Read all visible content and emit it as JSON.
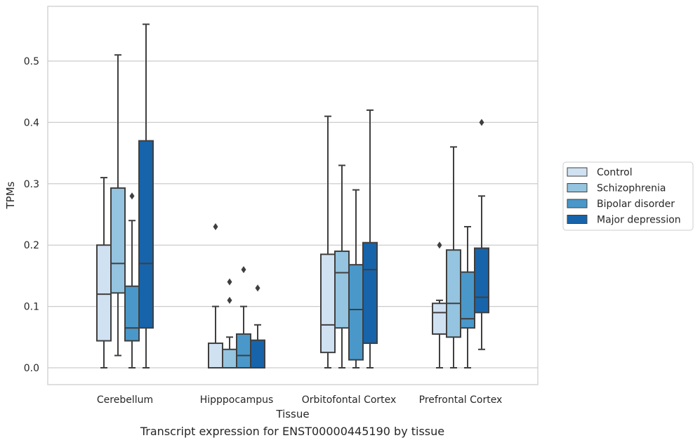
{
  "caption": "Transcript expression for ENST00000445190 by tissue",
  "chart_data": {
    "type": "box",
    "xlabel": "Tissue",
    "ylabel": "TPMs",
    "ylim": [
      -0.027,
      0.588
    ],
    "yticks": [
      0.0,
      0.1,
      0.2,
      0.3,
      0.4,
      0.5
    ],
    "grid": "horizontal",
    "legend_position": "right",
    "categories": [
      "Cerebellum",
      "Hipppocampus",
      "Orbitofontal Cortex",
      "Prefrontal Cortex"
    ],
    "series": [
      {
        "name": "Control",
        "color": "#d0e1f2",
        "boxes": [
          {
            "whislo": 0.0,
            "q1": 0.044,
            "med": 0.12,
            "q3": 0.2,
            "whishi": 0.31,
            "fliers": []
          },
          {
            "whislo": 0.0,
            "q1": 0.0,
            "med": 0.0,
            "q3": 0.04,
            "whishi": 0.1,
            "fliers": [
              0.23
            ]
          },
          {
            "whislo": 0.0,
            "q1": 0.025,
            "med": 0.07,
            "q3": 0.185,
            "whishi": 0.41,
            "fliers": []
          },
          {
            "whislo": 0.0,
            "q1": 0.055,
            "med": 0.09,
            "q3": 0.105,
            "whishi": 0.11,
            "fliers": [
              0.2
            ]
          }
        ]
      },
      {
        "name": "Schizophrenia",
        "color": "#94c4df",
        "boxes": [
          {
            "whislo": 0.02,
            "q1": 0.122,
            "med": 0.17,
            "q3": 0.293,
            "whishi": 0.51,
            "fliers": []
          },
          {
            "whislo": 0.0,
            "q1": 0.0,
            "med": 0.0,
            "q3": 0.03,
            "whishi": 0.05,
            "fliers": [
              0.11,
              0.14
            ]
          },
          {
            "whislo": 0.0,
            "q1": 0.065,
            "med": 0.155,
            "q3": 0.19,
            "whishi": 0.33,
            "fliers": []
          },
          {
            "whislo": 0.0,
            "q1": 0.05,
            "med": 0.105,
            "q3": 0.192,
            "whishi": 0.36,
            "fliers": []
          }
        ]
      },
      {
        "name": "Bipolar disorder",
        "color": "#4a98c9",
        "boxes": [
          {
            "whislo": 0.0,
            "q1": 0.044,
            "med": 0.065,
            "q3": 0.133,
            "whishi": 0.24,
            "fliers": [
              0.28
            ]
          },
          {
            "whislo": 0.0,
            "q1": 0.0,
            "med": 0.02,
            "q3": 0.055,
            "whishi": 0.1,
            "fliers": [
              0.16
            ]
          },
          {
            "whislo": 0.0,
            "q1": 0.013,
            "med": 0.095,
            "q3": 0.168,
            "whishi": 0.29,
            "fliers": []
          },
          {
            "whislo": 0.0,
            "q1": 0.065,
            "med": 0.08,
            "q3": 0.156,
            "whishi": 0.23,
            "fliers": []
          }
        ]
      },
      {
        "name": "Major depression",
        "color": "#1764ab",
        "boxes": [
          {
            "whislo": 0.0,
            "q1": 0.065,
            "med": 0.17,
            "q3": 0.37,
            "whishi": 0.56,
            "fliers": []
          },
          {
            "whislo": 0.0,
            "q1": 0.0,
            "med": 0.0,
            "q3": 0.045,
            "whishi": 0.07,
            "fliers": [
              0.13
            ]
          },
          {
            "whislo": 0.0,
            "q1": 0.04,
            "med": 0.16,
            "q3": 0.204,
            "whishi": 0.42,
            "fliers": []
          },
          {
            "whislo": 0.03,
            "q1": 0.09,
            "med": 0.115,
            "q3": 0.195,
            "whishi": 0.28,
            "fliers": [
              0.4
            ]
          }
        ]
      }
    ]
  }
}
